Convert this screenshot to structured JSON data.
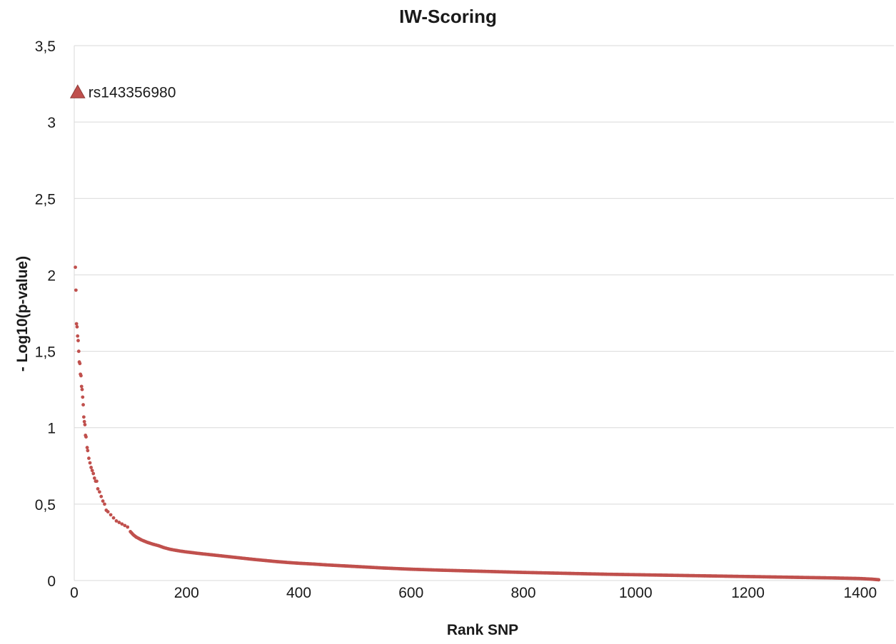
{
  "chart_data": {
    "type": "scatter",
    "title": "IW-Scoring",
    "xlabel": "Rank SNP",
    "ylabel": "- Log10(p-value)",
    "xlim": [
      0,
      1460
    ],
    "ylim": [
      0,
      3.5
    ],
    "x_ticks": [
      0,
      200,
      400,
      600,
      800,
      1000,
      1200,
      1400
    ],
    "y_ticks": [
      0,
      0.5,
      1,
      1.5,
      2,
      2.5,
      3,
      3.5
    ],
    "x_tick_labels": [
      "0",
      "200",
      "400",
      "600",
      "800",
      "1000",
      "1200",
      "1400"
    ],
    "y_tick_labels": [
      "0",
      "0,5",
      "1",
      "1,5",
      "2",
      "2,5",
      "3",
      "3,5"
    ],
    "grid": {
      "horizontal": true,
      "vertical": false
    },
    "marker_color": "#C0504D",
    "highlight": {
      "label": "rs143356980",
      "x": 1,
      "y": 3.2,
      "marker": "triangle",
      "color": "#C0504D"
    },
    "series": [
      {
        "marker": "circle",
        "total_points": 1433,
        "points": [
          [
            2,
            2.05
          ],
          [
            3,
            1.9
          ],
          [
            4,
            1.68
          ],
          [
            5,
            1.66
          ],
          [
            6,
            1.6
          ],
          [
            7,
            1.57
          ],
          [
            8,
            1.5
          ],
          [
            9,
            1.43
          ],
          [
            10,
            1.42
          ],
          [
            11,
            1.35
          ],
          [
            12,
            1.34
          ],
          [
            13,
            1.27
          ],
          [
            14,
            1.25
          ],
          [
            15,
            1.2
          ],
          [
            16,
            1.15
          ],
          [
            17,
            1.07
          ],
          [
            18,
            1.04
          ],
          [
            19,
            1.02
          ],
          [
            20,
            0.95
          ],
          [
            21,
            0.94
          ],
          [
            23,
            0.87
          ],
          [
            24,
            0.85
          ],
          [
            26,
            0.8
          ],
          [
            28,
            0.77
          ],
          [
            30,
            0.74
          ],
          [
            32,
            0.72
          ],
          [
            34,
            0.7
          ],
          [
            36,
            0.67
          ],
          [
            38,
            0.65
          ],
          [
            40,
            0.65
          ],
          [
            42,
            0.6
          ],
          [
            45,
            0.58
          ],
          [
            48,
            0.55
          ],
          [
            51,
            0.52
          ],
          [
            54,
            0.5
          ],
          [
            57,
            0.46
          ],
          [
            60,
            0.45
          ],
          [
            65,
            0.43
          ],
          [
            70,
            0.41
          ],
          [
            75,
            0.39
          ],
          [
            80,
            0.38
          ],
          [
            85,
            0.37
          ],
          [
            90,
            0.36
          ],
          [
            95,
            0.35
          ],
          [
            100,
            0.32
          ],
          [
            105,
            0.3
          ],
          [
            110,
            0.285
          ],
          [
            115,
            0.275
          ],
          [
            120,
            0.265
          ],
          [
            130,
            0.25
          ],
          [
            140,
            0.238
          ],
          [
            150,
            0.228
          ],
          [
            160,
            0.215
          ],
          [
            170,
            0.205
          ],
          [
            180,
            0.198
          ],
          [
            190,
            0.192
          ],
          [
            200,
            0.187
          ],
          [
            220,
            0.178
          ],
          [
            240,
            0.17
          ],
          [
            260,
            0.162
          ],
          [
            280,
            0.154
          ],
          [
            300,
            0.146
          ],
          [
            320,
            0.138
          ],
          [
            340,
            0.131
          ],
          [
            360,
            0.124
          ],
          [
            380,
            0.118
          ],
          [
            400,
            0.113
          ],
          [
            425,
            0.108
          ],
          [
            450,
            0.102
          ],
          [
            475,
            0.097
          ],
          [
            500,
            0.092
          ],
          [
            525,
            0.087
          ],
          [
            550,
            0.082
          ],
          [
            575,
            0.078
          ],
          [
            600,
            0.074
          ],
          [
            650,
            0.068
          ],
          [
            700,
            0.063
          ],
          [
            750,
            0.058
          ],
          [
            800,
            0.053
          ],
          [
            850,
            0.049
          ],
          [
            900,
            0.045
          ],
          [
            950,
            0.041
          ],
          [
            1000,
            0.038
          ],
          [
            1050,
            0.035
          ],
          [
            1100,
            0.032
          ],
          [
            1150,
            0.029
          ],
          [
            1200,
            0.026
          ],
          [
            1250,
            0.023
          ],
          [
            1300,
            0.02
          ],
          [
            1350,
            0.017
          ],
          [
            1400,
            0.013
          ],
          [
            1420,
            0.009
          ],
          [
            1433,
            0.005
          ]
        ]
      }
    ]
  }
}
